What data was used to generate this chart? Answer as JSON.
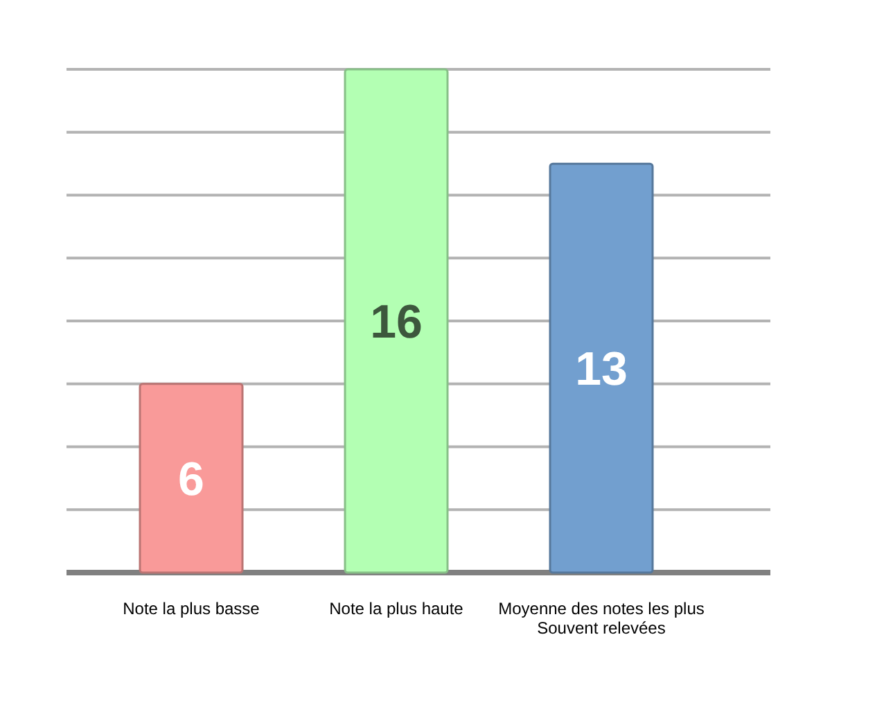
{
  "chart_data": {
    "type": "bar",
    "categories": [
      "Note la plus basse",
      "Note la plus haute",
      "Moyenne des notes les plus Souvent relevées"
    ],
    "values": [
      6,
      16,
      13
    ],
    "colors": [
      "#f99a99",
      "#b3ffb3",
      "#729fcf"
    ],
    "ylim": [
      0,
      16
    ],
    "yticks": [
      0,
      2,
      4,
      6,
      8,
      10,
      12,
      14,
      16
    ],
    "tick_labels": "x",
    "grid": "y",
    "data_labels": true
  }
}
